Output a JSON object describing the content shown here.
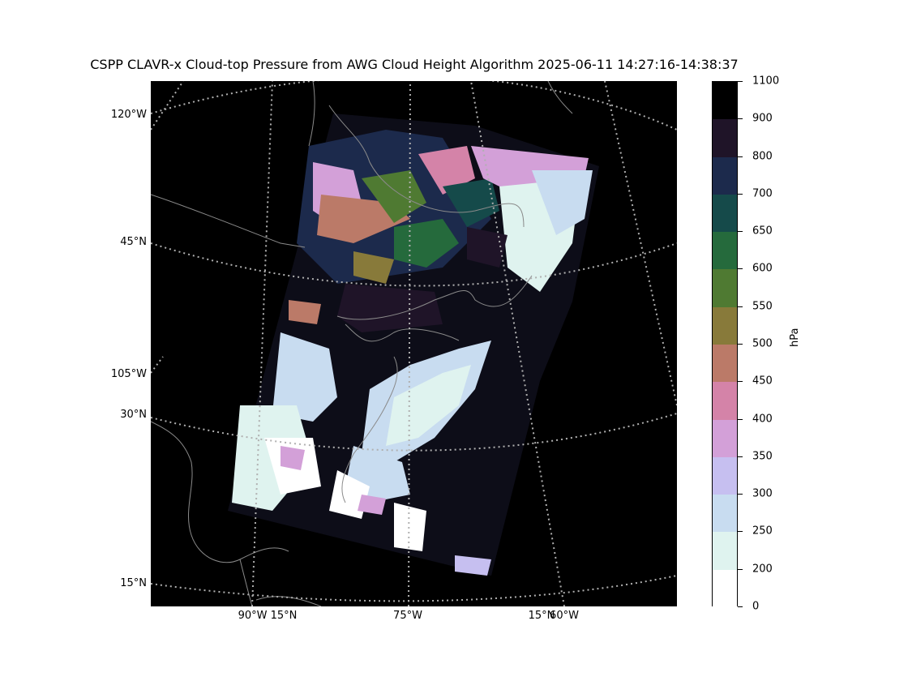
{
  "title": "CSPP CLAVR-x Cloud-top Pressure from AWG Cloud Height Algorithm 2025-06-11 14:27:16-14:38:37",
  "map": {
    "background_color": "#000000",
    "coastline_color": "#8a8a8a",
    "graticule_color": "#b0b0b0",
    "graticule_style": "dotted",
    "left_labels": [
      "120°W",
      "45°N",
      "105°W",
      "30°N",
      "15°N"
    ],
    "bottom_labels": [
      "90°W 15°N",
      "75°W",
      "15°N",
      "60°W"
    ]
  },
  "colorbar": {
    "unit": "hPa",
    "ticks": [
      "1100",
      "900",
      "800",
      "700",
      "650",
      "600",
      "550",
      "500",
      "450",
      "400",
      "350",
      "300",
      "250",
      "200",
      "0"
    ],
    "colors": [
      "#000000",
      "#1f1428",
      "#1c2a4c",
      "#154a4a",
      "#256a3c",
      "#4f7a32",
      "#887a3a",
      "#bb7a68",
      "#d483a8",
      "#d3a0d8",
      "#c6bff0",
      "#c8dcf0",
      "#dff3ef",
      "#ffffff"
    ]
  }
}
